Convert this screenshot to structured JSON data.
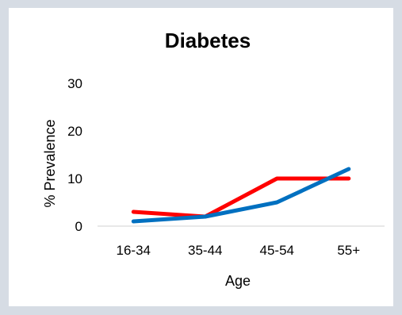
{
  "chart_data": {
    "type": "line",
    "title": "Diabetes",
    "xlabel": "Age",
    "ylabel": "% Prevalence",
    "categories": [
      "16-34",
      "35-44",
      "45-54",
      "55+"
    ],
    "ylim": [
      0,
      30
    ],
    "yticks": [
      0,
      10,
      20,
      30
    ],
    "grid": false,
    "series": [
      {
        "color": "#ff0000",
        "values": [
          3,
          2,
          10,
          10
        ]
      },
      {
        "color": "#0070c0",
        "values": [
          1,
          2,
          5,
          12
        ]
      }
    ]
  }
}
